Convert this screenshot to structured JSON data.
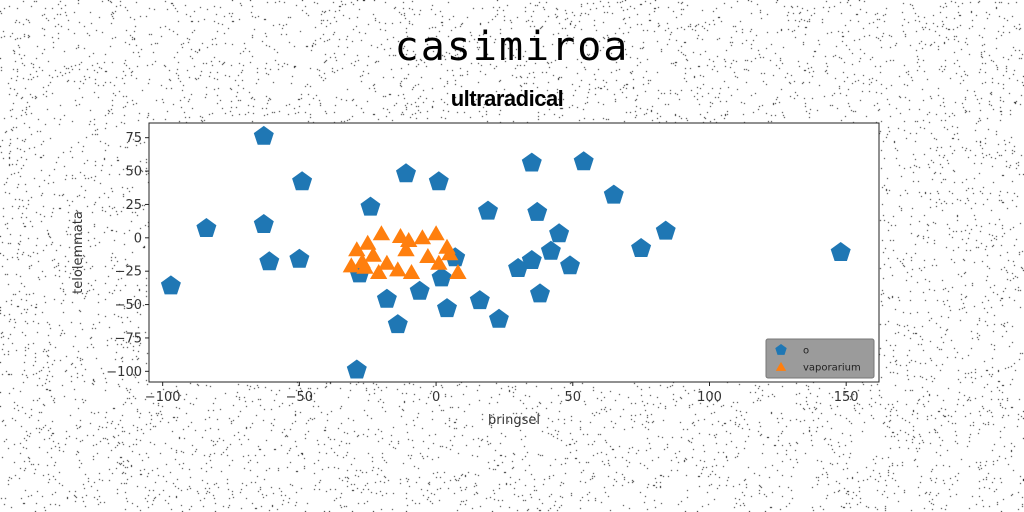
{
  "chart_data": {
    "type": "scatter",
    "title": "casimiroa",
    "subtitle": "ultraradical",
    "xlabel": "bringsel",
    "ylabel": "telolemmata",
    "xlim": [
      -105,
      162
    ],
    "ylim": [
      -108,
      86
    ],
    "xticks": [
      -100,
      -50,
      0,
      50,
      100,
      150
    ],
    "yticks": [
      75,
      50,
      25,
      0,
      -25,
      -50,
      -75,
      -100
    ],
    "grid": false,
    "legend_position": "bottom-right",
    "series": [
      {
        "name": "o",
        "marker": "pentagon",
        "color": "#1f77b4",
        "points": [
          [
            -63,
            76
          ],
          [
            35,
            56
          ],
          [
            54,
            57
          ],
          [
            -49,
            42
          ],
          [
            -11,
            48
          ],
          [
            1,
            42
          ],
          [
            65,
            32
          ],
          [
            -24,
            23
          ],
          [
            19,
            20
          ],
          [
            37,
            19
          ],
          [
            -84,
            7
          ],
          [
            -63,
            10
          ],
          [
            84,
            5
          ],
          [
            45,
            3
          ],
          [
            75,
            -8
          ],
          [
            148,
            -11
          ],
          [
            -61,
            -18
          ],
          [
            -50,
            -16
          ],
          [
            7,
            -15
          ],
          [
            42,
            -10
          ],
          [
            35,
            -17
          ],
          [
            30,
            -23
          ],
          [
            49,
            -21
          ],
          [
            -28,
            -27
          ],
          [
            2,
            -30
          ],
          [
            -97,
            -36
          ],
          [
            -6,
            -40
          ],
          [
            38,
            -42
          ],
          [
            -18,
            -46
          ],
          [
            16,
            -47
          ],
          [
            4,
            -53
          ],
          [
            23,
            -61
          ],
          [
            -14,
            -65
          ],
          [
            -29,
            -99
          ]
        ]
      },
      {
        "name": "vaporarium",
        "marker": "triangle",
        "color": "#ff7f0e",
        "points": [
          [
            -29,
            -9
          ],
          [
            -25,
            -4
          ],
          [
            -20,
            3
          ],
          [
            -13,
            1
          ],
          [
            -10,
            -2
          ],
          [
            -5,
            0
          ],
          [
            0,
            3
          ],
          [
            4,
            -7
          ],
          [
            -27,
            -18
          ],
          [
            -23,
            -13
          ],
          [
            -31,
            -21
          ],
          [
            -26,
            -22
          ],
          [
            -21,
            -26
          ],
          [
            -14,
            -24
          ],
          [
            -9,
            -26
          ],
          [
            -3,
            -14
          ],
          [
            1,
            -19
          ],
          [
            5,
            -12
          ],
          [
            8,
            -26
          ],
          [
            -18,
            -19
          ],
          [
            -11,
            -9
          ]
        ]
      }
    ]
  }
}
